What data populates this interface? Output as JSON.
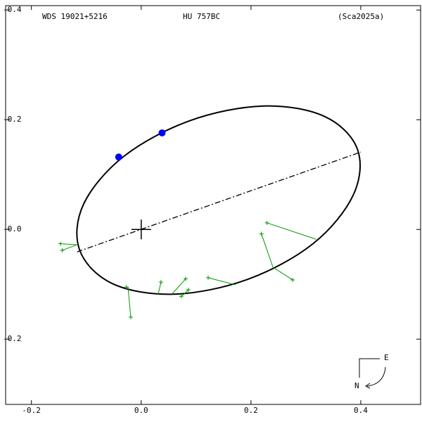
{
  "chart_data": {
    "type": "orbit",
    "designation": "WDS 19021+5216",
    "name": "HU  757BC",
    "reference": "(Sca2025a)",
    "compass_east": "E",
    "compass_north": "N",
    "xlim": [
      -0.247,
      0.509
    ],
    "ylim": [
      -0.408,
      0.319
    ],
    "xticks": [
      -0.2,
      {
        "value": 0,
        "label": "0.0"
      },
      0.2,
      0.4
    ],
    "yticks": [
      -0.4,
      -0.2,
      {
        "value": 0,
        "label": "-0.0"
      },
      {
        "value": 0.2,
        "label": "-0.2"
      }
    ],
    "orbit": {
      "color": "#000000",
      "x": [
        0.394,
        0.386,
        0.313,
        0.194,
        0.06,
        -0.052,
        -0.112,
        -0.105,
        -0.032,
        0.088,
        0.222,
        0.334
      ],
      "y": [
        -0.146,
        -0.062,
        0.026,
        0.091,
        0.118,
        0.099,
        0.038,
        -0.046,
        -0.133,
        -0.198,
        -0.225,
        -0.206
      ]
    },
    "node_line": {
      "color": "#000000",
      "x": [
        -0.117,
        0.4
      ],
      "y": [
        0.041,
        -0.141
      ]
    },
    "points": {
      "color": "#0000ff",
      "x": [
        -0.041,
        0.038
      ],
      "y": [
        -0.132,
        -0.176
      ]
    },
    "observations": {
      "color": "#009900",
      "x": [
        -0.147,
        -0.144,
        -0.027,
        -0.019,
        0.036,
        0.081,
        0.073,
        0.086,
        0.122,
        0.219,
        0.276,
        0.229
      ],
      "y": [
        0.026,
        0.038,
        0.105,
        0.16,
        0.096,
        0.09,
        0.122,
        0.11,
        0.088,
        0.008,
        0.092,
        -0.012
      ],
      "predicted_x": [
        -0.117,
        -0.117,
        -0.023,
        -0.024,
        0.031,
        0.056,
        0.078,
        0.078,
        0.172,
        0.24,
        0.24,
        0.319
      ],
      "predicted_y": [
        0.028,
        0.028,
        0.106,
        0.106,
        0.118,
        0.118,
        0.118,
        0.118,
        0.101,
        0.069,
        0.069,
        0.018
      ]
    }
  }
}
